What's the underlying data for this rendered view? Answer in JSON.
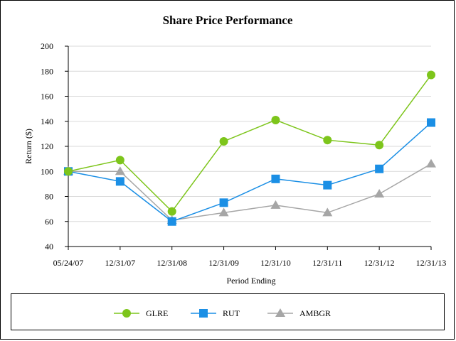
{
  "chart_data": {
    "type": "line",
    "title": "Share Price Performance",
    "xlabel": "Period Ending",
    "ylabel": "Return ($)",
    "categories": [
      "05/24/07",
      "12/31/07",
      "12/31/08",
      "12/31/09",
      "12/31/10",
      "12/31/11",
      "12/31/12",
      "12/31/13"
    ],
    "ylim": [
      40,
      200
    ],
    "yticks": [
      40,
      60,
      80,
      100,
      120,
      140,
      160,
      180,
      200
    ],
    "grid": true,
    "legend_position": "bottom",
    "series": [
      {
        "name": "GLRE",
        "color": "#7dc51b",
        "marker": "circle",
        "values": [
          100,
          109,
          68,
          124,
          141,
          125,
          121,
          177
        ]
      },
      {
        "name": "RUT",
        "color": "#1b8fe5",
        "marker": "square",
        "values": [
          100,
          92,
          60,
          75,
          94,
          89,
          102,
          139
        ]
      },
      {
        "name": "AMBGR",
        "color": "#a6a6a6",
        "marker": "triangle",
        "values": [
          100,
          100,
          61,
          67,
          73,
          67,
          82,
          106
        ]
      }
    ]
  }
}
